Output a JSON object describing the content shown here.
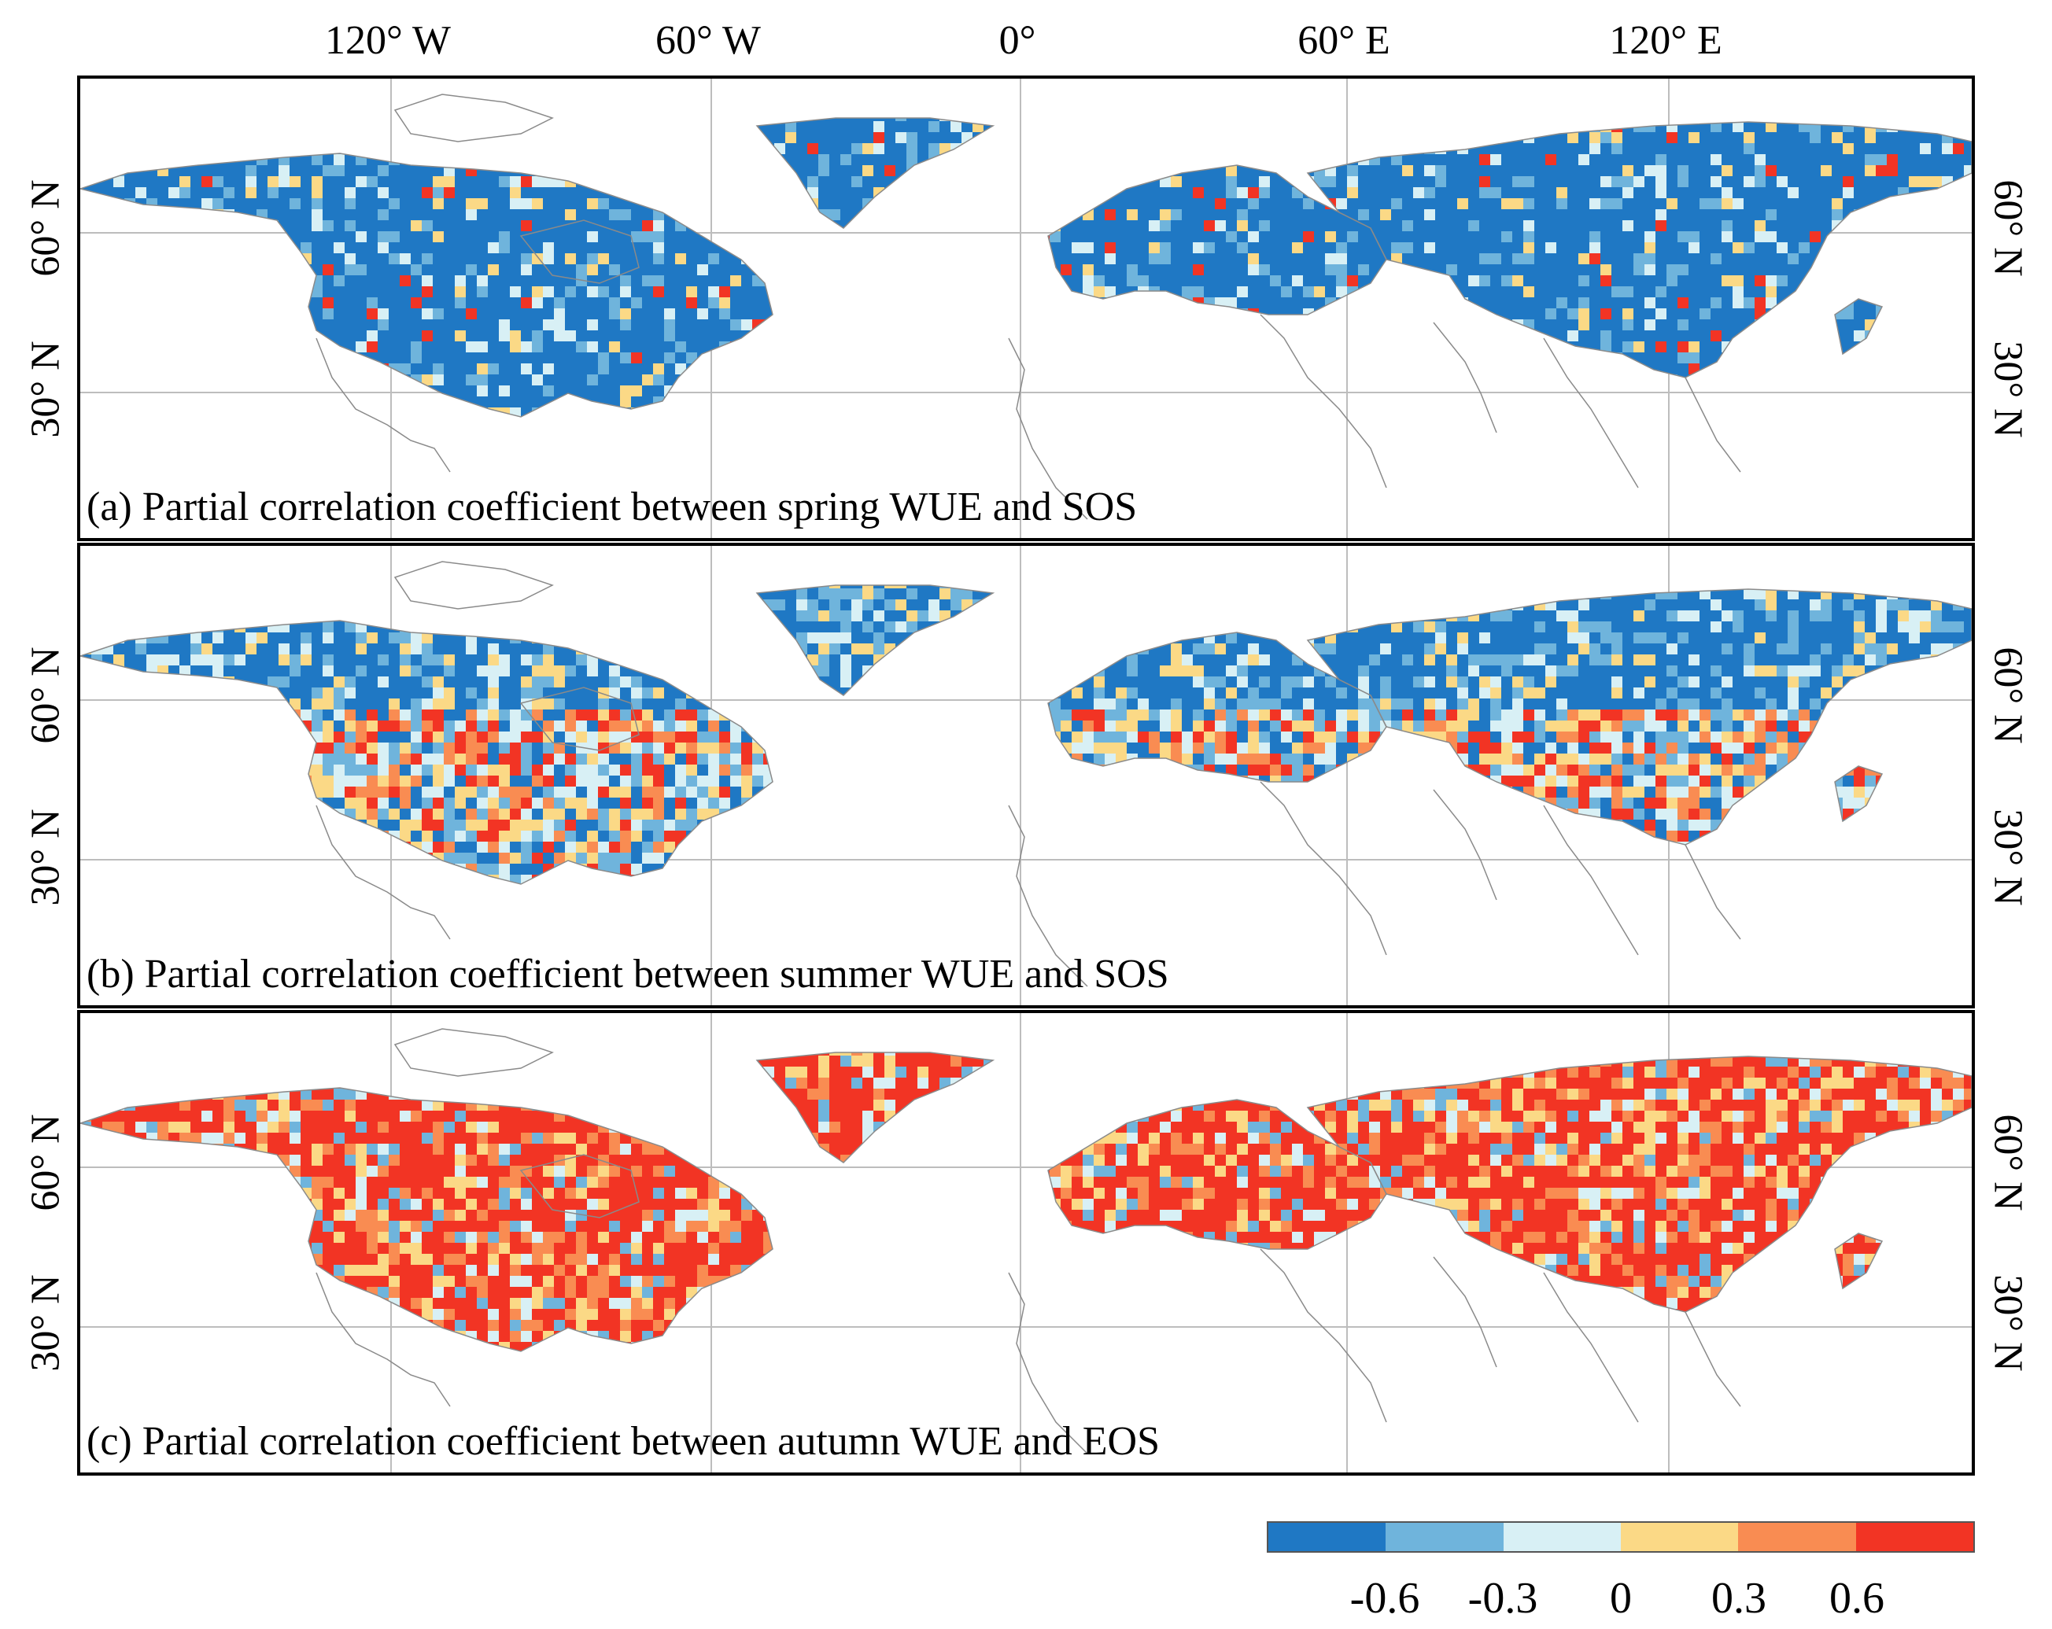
{
  "lon_labels": [
    "120° W",
    "60° W",
    "0°",
    "60° E",
    "120° E"
  ],
  "lat_labels": [
    "60° N",
    "30° N"
  ],
  "panels": [
    {
      "caption": "(a) Partial correlation coefficient between spring WUE and SOS",
      "pattern": "negative"
    },
    {
      "caption": "(b) Partial correlation coefficient between summer WUE and SOS",
      "pattern": "mixed"
    },
    {
      "caption": "(c) Partial correlation coefficient between autumn WUE and EOS",
      "pattern": "positive"
    }
  ],
  "legend": {
    "colors": [
      "#1f78c4",
      "#6fb4dc",
      "#d8f0f5",
      "#fbd986",
      "#f98c52",
      "#f23424"
    ],
    "ticks": [
      "-0.6",
      "-0.3",
      "0",
      "0.3",
      "0.6"
    ]
  }
}
